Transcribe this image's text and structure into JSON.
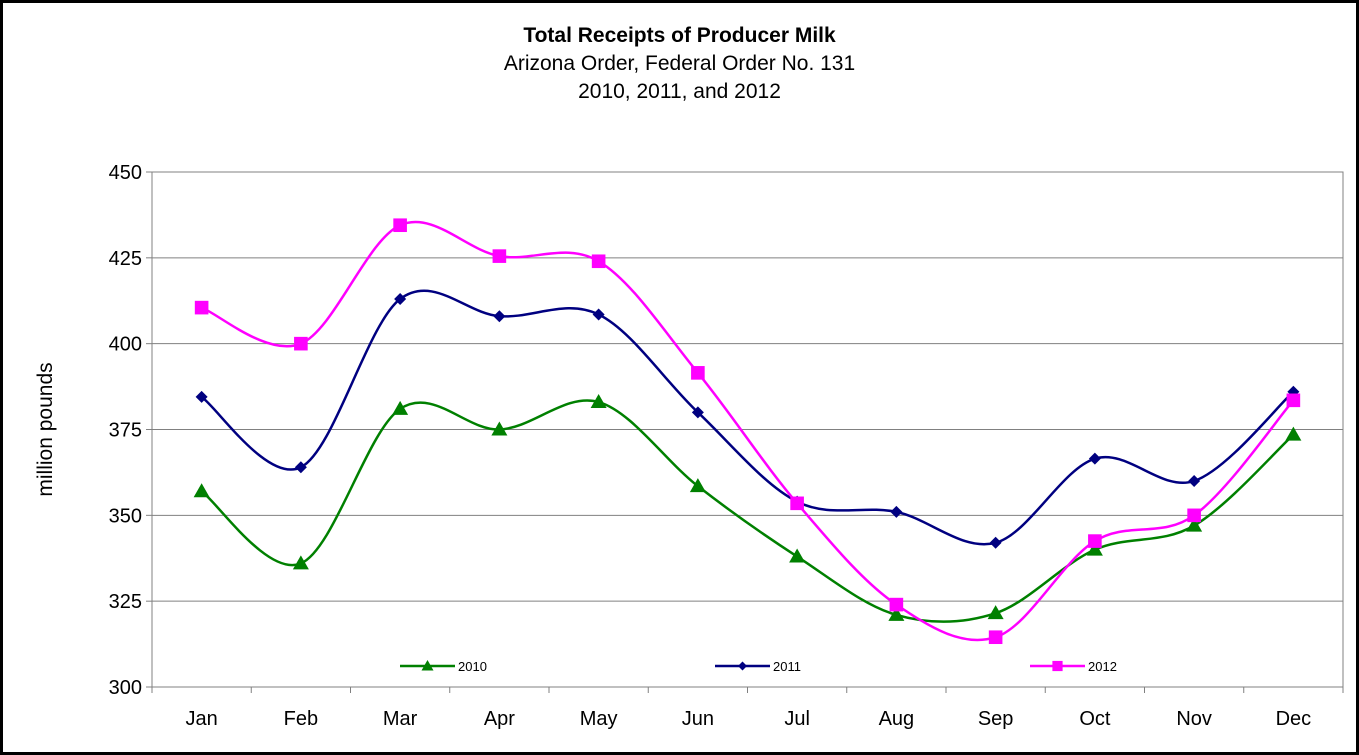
{
  "chart_data": {
    "type": "line",
    "title": "Total Receipts of Producer Milk",
    "subtitle_1": "Arizona Order, Federal Order No. 131",
    "subtitle_2": "2010, 2011, and 2012",
    "ylabel": "million pounds",
    "xlabel": "",
    "ylim": [
      300,
      450
    ],
    "yticks": [
      300,
      325,
      350,
      375,
      400,
      425,
      450
    ],
    "categories": [
      "Jan",
      "Feb",
      "Mar",
      "Apr",
      "May",
      "Jun",
      "Jul",
      "Aug",
      "Sep",
      "Oct",
      "Nov",
      "Dec"
    ],
    "grid": "horizontal",
    "legend_position": "bottom",
    "series": [
      {
        "name": "2010",
        "color": "#008000",
        "marker": "triangle",
        "values": [
          357,
          336,
          381,
          375,
          383,
          358.5,
          338,
          321,
          321.5,
          340,
          347,
          373.5
        ]
      },
      {
        "name": "2011",
        "color": "#000080",
        "marker": "diamond",
        "values": [
          384.5,
          364,
          413,
          408,
          408.5,
          380,
          354,
          351,
          342,
          366.5,
          360,
          386
        ]
      },
      {
        "name": "2012",
        "color": "#FF00FF",
        "marker": "square",
        "values": [
          410.5,
          400,
          434.5,
          425.5,
          424,
          391.5,
          353.5,
          324,
          314.5,
          342.5,
          350,
          383.5
        ]
      }
    ]
  }
}
